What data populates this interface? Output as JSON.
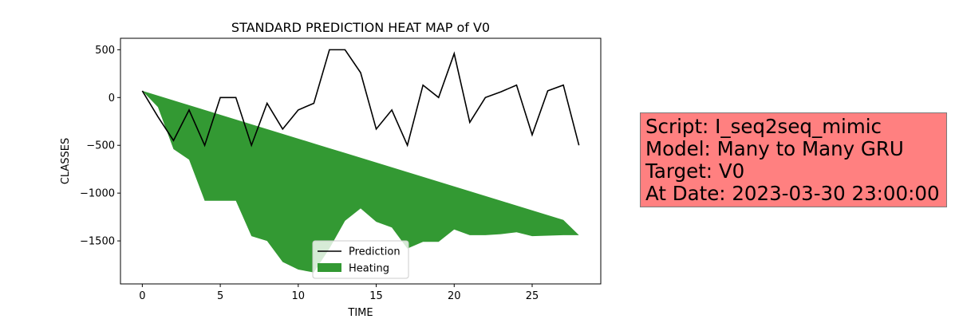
{
  "chart_data": {
    "type": "line",
    "title": "STANDARD PREDICTION HEAT MAP of V0",
    "xlabel": "TIME",
    "ylabel": "CLASSES",
    "xlim": [
      -1.4,
      29.4
    ],
    "ylim": [
      -1950,
      620
    ],
    "xticks": [
      0,
      5,
      10,
      15,
      20,
      25
    ],
    "yticks": [
      500,
      0,
      -500,
      -1000,
      -1500
    ],
    "ytick_labels": [
      "500",
      "0",
      "−500",
      "−1000",
      "−1500"
    ],
    "grid": false,
    "legend_position": "bottom-center",
    "series": [
      {
        "name": "Prediction",
        "kind": "line",
        "color": "#000000",
        "x": [
          0,
          1,
          2,
          3,
          4,
          5,
          6,
          7,
          8,
          9,
          10,
          11,
          12,
          13,
          14,
          15,
          16,
          17,
          18,
          19,
          20,
          21,
          22,
          23,
          24,
          25,
          26,
          27,
          28
        ],
        "values": [
          70,
          -200,
          -450,
          -130,
          -500,
          0,
          0,
          -500,
          -60,
          -330,
          -130,
          -60,
          500,
          500,
          260,
          -330,
          -130,
          -500,
          130,
          0,
          460,
          -260,
          0,
          60,
          130,
          -390,
          70,
          130,
          -500
        ]
      },
      {
        "name": "Heating",
        "kind": "fill_between",
        "color": "#339933",
        "x": [
          0,
          1,
          2,
          3,
          4,
          5,
          6,
          7,
          8,
          9,
          10,
          11,
          12,
          13,
          14,
          15,
          16,
          17,
          18,
          19,
          20,
          21,
          22,
          23,
          24,
          25,
          26,
          27,
          28
        ],
        "upper": [
          70,
          20,
          -30,
          -80,
          -130,
          -180,
          -230,
          -280,
          -330,
          -380,
          -430,
          -480,
          -530,
          -580,
          -630,
          -680,
          -730,
          -780,
          -830,
          -880,
          -930,
          -980,
          -1030,
          -1080,
          -1130,
          -1180,
          -1230,
          -1280,
          -1440
        ],
        "lower": [
          70,
          -100,
          -540,
          -650,
          -1080,
          -1080,
          -1080,
          -1450,
          -1500,
          -1720,
          -1800,
          -1830,
          -1580,
          -1290,
          -1160,
          -1300,
          -1360,
          -1580,
          -1510,
          -1510,
          -1380,
          -1440,
          -1440,
          -1430,
          -1410,
          -1450,
          -1445,
          -1440,
          -1440
        ]
      }
    ]
  },
  "info_box": {
    "lines": [
      "Script: I_seq2seq_mimic",
      "Model: Many to Many GRU",
      "Target: V0",
      "At Date: 2023-03-30 23:00:00"
    ],
    "background": "#ff8080"
  }
}
